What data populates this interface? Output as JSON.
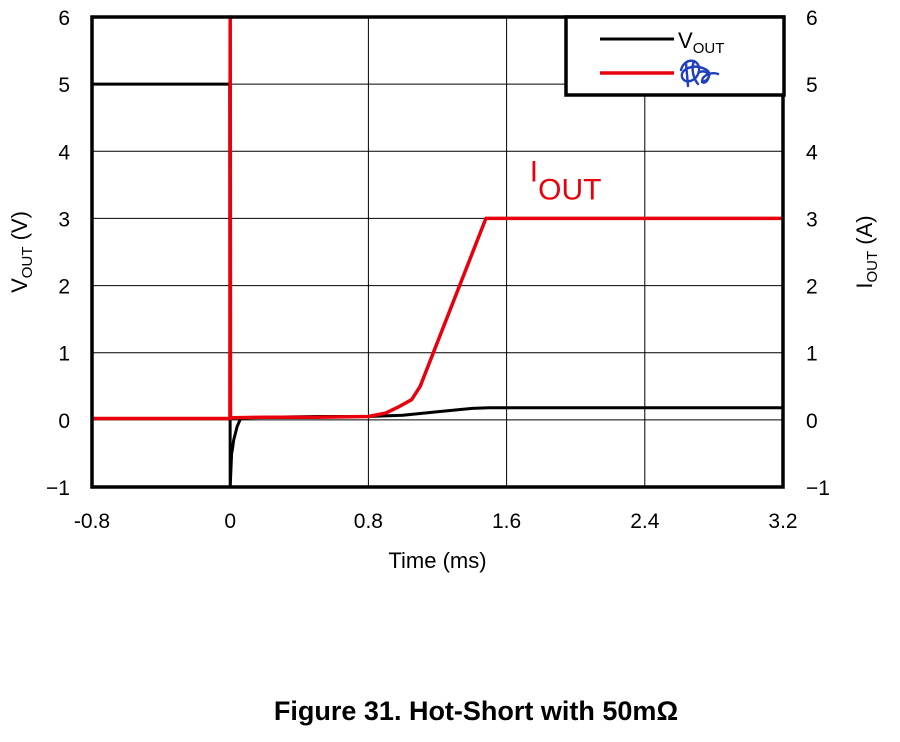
{
  "chart_data": {
    "type": "line",
    "caption": "Figure 31. Hot-Short with 50mΩ",
    "xlabel": "Time (ms)",
    "ylabel_left": {
      "main": "V",
      "sub": "OUT",
      "tail": " (V)"
    },
    "ylabel_right": {
      "main": "I",
      "sub": "OUT",
      "tail": " (A)"
    },
    "xlim": [
      -0.8,
      3.2
    ],
    "ylim": [
      -1,
      6
    ],
    "x_ticks": [
      {
        "value": -0.8,
        "label": "-0.8"
      },
      {
        "value": 0,
        "label": "0"
      },
      {
        "value": 0.8,
        "label": "0.8"
      },
      {
        "value": 1.6,
        "label": "1.6"
      },
      {
        "value": 2.4,
        "label": "2.4"
      },
      {
        "value": 3.2,
        "label": "3.2"
      }
    ],
    "y_ticks": [
      {
        "value": 6,
        "label": "6"
      },
      {
        "value": 5,
        "label": "5"
      },
      {
        "value": 4,
        "label": "4"
      },
      {
        "value": 3,
        "label": "3"
      },
      {
        "value": 2,
        "label": "2"
      },
      {
        "value": 1,
        "label": "1"
      },
      {
        "value": 0,
        "label": "0"
      },
      {
        "value": -1,
        "label": "−1"
      }
    ],
    "grid": true,
    "legend": {
      "placement": "top-right",
      "entries": [
        {
          "main": "V",
          "sub": "OUT",
          "color": "#000000"
        }
      ]
    },
    "annotation": {
      "main": "I",
      "sub": "OUT",
      "x": 1.85,
      "y": 3.25,
      "color": "#e8000d"
    },
    "series": [
      {
        "name": "VOUT",
        "color": "#000000",
        "x": [
          -0.8,
          -0.003,
          0.0,
          0.008,
          0.012,
          0.02,
          0.04,
          0.06,
          0.1,
          0.2,
          0.5,
          0.8,
          1.0,
          1.2,
          1.4,
          1.5,
          2.0,
          2.5,
          3.2
        ],
        "y": [
          5.0,
          5.0,
          -1.0,
          -0.5,
          -0.45,
          -0.3,
          -0.1,
          0.02,
          0.03,
          0.04,
          0.05,
          0.05,
          0.07,
          0.12,
          0.17,
          0.18,
          0.18,
          0.18,
          0.18
        ]
      },
      {
        "name": "IOUT",
        "color": "#e8000d",
        "x": [
          -0.8,
          -0.002,
          0.0,
          0.002,
          0.01,
          0.2,
          0.5,
          0.8,
          0.9,
          0.98,
          1.05,
          1.1,
          1.48,
          1.6,
          2.4,
          3.2
        ],
        "y": [
          0.02,
          0.02,
          6.0,
          0.02,
          0.03,
          0.04,
          0.04,
          0.05,
          0.1,
          0.2,
          0.3,
          0.5,
          3.0,
          3.0,
          3.0,
          3.0
        ]
      }
    ]
  }
}
